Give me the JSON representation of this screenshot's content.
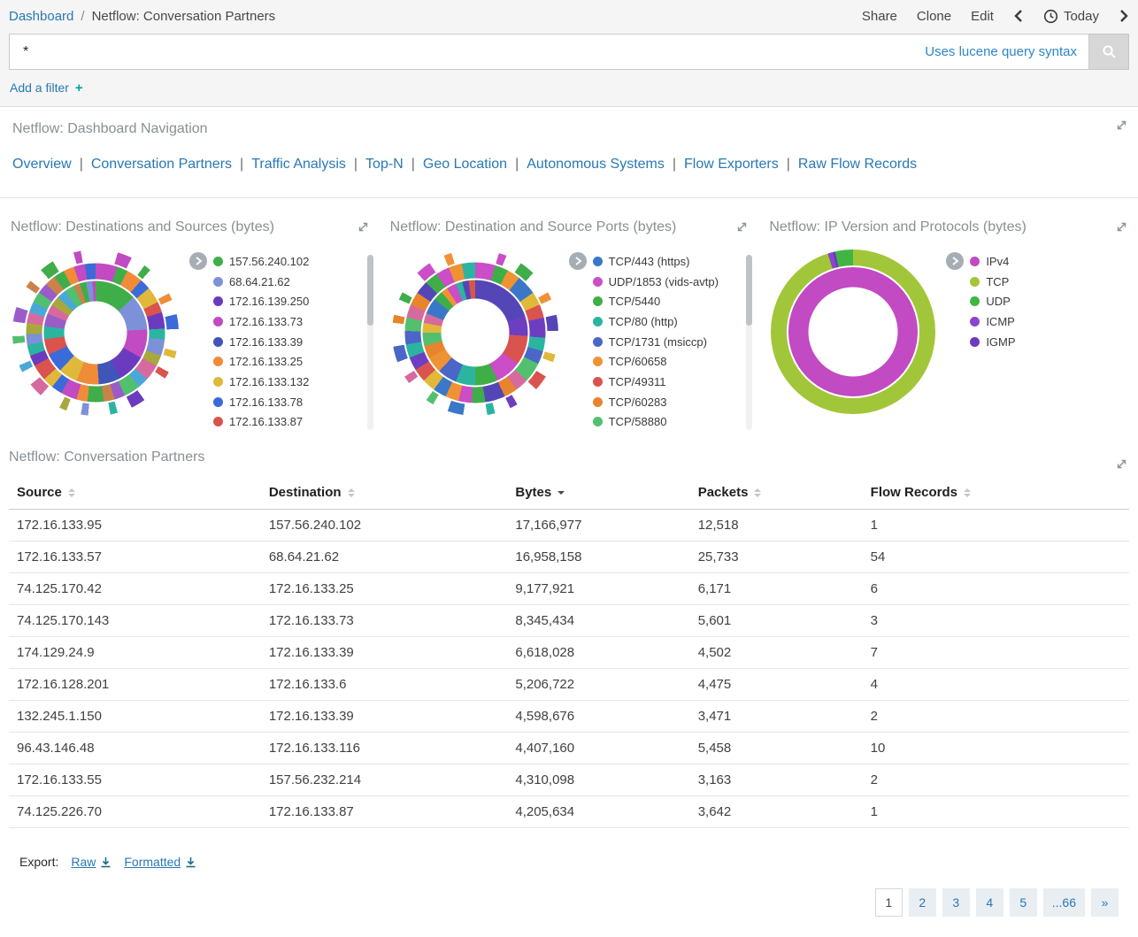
{
  "colors": {
    "accent": "#2878b5",
    "add_filter_plus": "#00a69b"
  },
  "breadcrumb": {
    "dashboard_label": "Dashboard",
    "separator": "/",
    "title": "Netflow: Conversation Partners"
  },
  "topbar": {
    "actions": [
      "Share",
      "Clone",
      "Edit"
    ],
    "time_label": "Today"
  },
  "search": {
    "value": "*",
    "hint": "Uses lucene query syntax"
  },
  "filter_bar": {
    "add_filter_label": "Add a filter",
    "plus": "+"
  },
  "nav_panel": {
    "title": "Netflow: Dashboard Navigation",
    "separator": "|",
    "links": [
      "Overview",
      "Conversation Partners",
      "Traffic Analysis",
      "Top-N",
      "Geo Location",
      "Autonomous Systems",
      "Flow Exporters",
      "Raw Flow Records"
    ]
  },
  "charts": [
    {
      "title": "Netflow: Destinations and Sources (bytes)",
      "legend_scroll": true,
      "legend": [
        {
          "label": "157.56.240.102",
          "color": "#3fae49"
        },
        {
          "label": "68.64.21.62",
          "color": "#7d91d8"
        },
        {
          "label": "172.16.139.250",
          "color": "#6a3bbf"
        },
        {
          "label": "172.16.133.73",
          "color": "#c24ac2"
        },
        {
          "label": "172.16.133.39",
          "color": "#4055b8"
        },
        {
          "label": "172.16.133.25",
          "color": "#f08c38"
        },
        {
          "label": "172.16.133.132",
          "color": "#e0b83a"
        },
        {
          "label": "172.16.133.78",
          "color": "#3a6bd8"
        },
        {
          "label": "172.16.133.87",
          "color": "#d9534f"
        }
      ],
      "chart_data": {
        "type": "pie",
        "subtype": "sunburst-donut",
        "size": 192,
        "hole": 0.37,
        "rings": [
          {
            "d": 1.0,
            "segments": [
              [
                "#fff",
                3
              ],
              [
                "#c24ac2",
                2
              ],
              [
                "#fff",
                2
              ],
              [
                "#3fae49",
                1
              ],
              [
                "#fff",
                4
              ],
              [
                "#f08c38",
                1
              ],
              [
                "#fff",
                2
              ],
              [
                "#3a6bd8",
                2
              ],
              [
                "#fff",
                3
              ],
              [
                "#e0b83a",
                1
              ],
              [
                "#fff",
                2
              ],
              [
                "#d9534f",
                1
              ],
              [
                "#fff",
                4
              ],
              [
                "#6a3bbf",
                2
              ],
              [
                "#fff",
                2
              ],
              [
                "#2bb5a0",
                1
              ],
              [
                "#fff",
                3
              ],
              [
                "#7d91d8",
                1
              ],
              [
                "#fff",
                2
              ],
              [
                "#a8a83c",
                1
              ],
              [
                "#fff",
                3
              ],
              [
                "#d66a9e",
                2
              ],
              [
                "#fff",
                2
              ],
              [
                "#4aa8d8",
                1
              ],
              [
                "#fff",
                3
              ],
              [
                "#52c06e",
                1
              ],
              [
                "#fff",
                2
              ],
              [
                "#9a5cc8",
                2
              ],
              [
                "#fff",
                3
              ],
              [
                "#c8824a",
                1
              ],
              [
                "#fff",
                2
              ],
              [
                "#3fae49",
                2
              ],
              [
                "#fff",
                3
              ],
              [
                "#c24ac2",
                1
              ],
              [
                "#fff",
                2
              ]
            ]
          },
          {
            "d": 0.84,
            "segments": [
              [
                "#c24ac2",
                4
              ],
              [
                "#3fae49",
                2
              ],
              [
                "#f08c38",
                3
              ],
              [
                "#3a6bd8",
                2
              ],
              [
                "#e0b83a",
                3
              ],
              [
                "#d9534f",
                2
              ],
              [
                "#6a3bbf",
                3
              ],
              [
                "#2bb5a0",
                2
              ],
              [
                "#7d91d8",
                3
              ],
              [
                "#a8a83c",
                2
              ],
              [
                "#d66a9e",
                3
              ],
              [
                "#4aa8d8",
                2
              ],
              [
                "#52c06e",
                3
              ],
              [
                "#9a5cc8",
                2
              ],
              [
                "#c8824a",
                2
              ],
              [
                "#3fae49",
                3
              ],
              [
                "#f08c38",
                2
              ],
              [
                "#c24ac2",
                3
              ],
              [
                "#3a6bd8",
                2
              ],
              [
                "#e0b83a",
                2
              ],
              [
                "#d9534f",
                3
              ],
              [
                "#6a3bbf",
                2
              ],
              [
                "#2bb5a0",
                2
              ],
              [
                "#7d91d8",
                2
              ],
              [
                "#a8a83c",
                2
              ],
              [
                "#d66a9e",
                2
              ],
              [
                "#4aa8d8",
                2
              ],
              [
                "#52c06e",
                2
              ],
              [
                "#9a5cc8",
                2
              ],
              [
                "#c8824a",
                2
              ],
              [
                "#3fae49",
                2
              ],
              [
                "#f08c38",
                2
              ],
              [
                "#c24ac2",
                2
              ],
              [
                "#3a6bd8",
                2
              ]
            ]
          },
          {
            "d": 0.63,
            "segments": [
              [
                "#3fae49",
                13
              ],
              [
                "#7d91d8",
                11
              ],
              [
                "#c24ac2",
                9
              ],
              [
                "#6a3bbf",
                9
              ],
              [
                "#4055b8",
                7
              ],
              [
                "#f08c38",
                7
              ],
              [
                "#e0b83a",
                6
              ],
              [
                "#3a6bd8",
                6
              ],
              [
                "#d9534f",
                5
              ],
              [
                "#2bb5a0",
                4
              ],
              [
                "#9a5cc8",
                4
              ],
              [
                "#d66a9e",
                3
              ],
              [
                "#a8a83c",
                3
              ],
              [
                "#4aa8d8",
                3
              ],
              [
                "#52c06e",
                3
              ],
              [
                "#c8824a",
                2
              ],
              [
                "#3fae49",
                2
              ],
              [
                "#7d91d8",
                2
              ],
              [
                "#c24ac2",
                1
              ]
            ]
          }
        ]
      }
    },
    {
      "title": "Netflow: Destination and Source Ports (bytes)",
      "legend_scroll": true,
      "legend": [
        {
          "label": "TCP/443 (https)",
          "color": "#3a77c8"
        },
        {
          "label": "UDP/1853 (vids-avtp)",
          "color": "#cb4dc8"
        },
        {
          "label": "TCP/5440",
          "color": "#3fae49"
        },
        {
          "label": "TCP/80 (http)",
          "color": "#2bb5a0"
        },
        {
          "label": "TCP/1731 (msiccp)",
          "color": "#4a66c8"
        },
        {
          "label": "TCP/60658",
          "color": "#ef9234"
        },
        {
          "label": "TCP/49311",
          "color": "#d9534f"
        },
        {
          "label": "TCP/60283",
          "color": "#e8842c"
        },
        {
          "label": "TCP/58880",
          "color": "#52c06e"
        }
      ],
      "chart_data": {
        "type": "pie",
        "subtype": "sunburst-donut",
        "size": 192,
        "hole": 0.4,
        "rings": [
          {
            "d": 1.0,
            "segments": [
              [
                "#fff",
                3
              ],
              [
                "#cb4dc8",
                1
              ],
              [
                "#fff",
                2
              ],
              [
                "#3fae49",
                2
              ],
              [
                "#fff",
                3
              ],
              [
                "#ef9234",
                1
              ],
              [
                "#fff",
                2
              ],
              [
                "#5546b8",
                2
              ],
              [
                "#fff",
                3
              ],
              [
                "#e0b83a",
                1
              ],
              [
                "#fff",
                2
              ],
              [
                "#d9534f",
                2
              ],
              [
                "#fff",
                3
              ],
              [
                "#6d3fc0",
                1
              ],
              [
                "#fff",
                2
              ],
              [
                "#2bb5a0",
                1
              ],
              [
                "#fff",
                3
              ],
              [
                "#3a77c8",
                2
              ],
              [
                "#fff",
                2
              ],
              [
                "#52c06e",
                1
              ],
              [
                "#fff",
                3
              ],
              [
                "#d66a9e",
                1
              ],
              [
                "#fff",
                2
              ],
              [
                "#4a66c8",
                2
              ],
              [
                "#fff",
                3
              ],
              [
                "#e8842c",
                1
              ],
              [
                "#fff",
                2
              ],
              [
                "#3fae49",
                1
              ],
              [
                "#fff",
                3
              ],
              [
                "#cb4dc8",
                2
              ],
              [
                "#fff",
                2
              ],
              [
                "#ef9234",
                1
              ],
              [
                "#fff",
                3
              ]
            ]
          },
          {
            "d": 0.85,
            "segments": [
              [
                "#cb4dc8",
                3
              ],
              [
                "#3fae49",
                2
              ],
              [
                "#ef9234",
                2
              ],
              [
                "#3a77c8",
                3
              ],
              [
                "#e0b83a",
                2
              ],
              [
                "#d9534f",
                2
              ],
              [
                "#6d3fc0",
                3
              ],
              [
                "#2bb5a0",
                2
              ],
              [
                "#4a66c8",
                2
              ],
              [
                "#52c06e",
                3
              ],
              [
                "#d66a9e",
                2
              ],
              [
                "#e8842c",
                2
              ],
              [
                "#5546b8",
                3
              ],
              [
                "#3fae49",
                2
              ],
              [
                "#cb4dc8",
                2
              ],
              [
                "#ef9234",
                2
              ],
              [
                "#3a77c8",
                2
              ],
              [
                "#e0b83a",
                2
              ],
              [
                "#d9534f",
                2
              ],
              [
                "#6d3fc0",
                2
              ],
              [
                "#2bb5a0",
                2
              ],
              [
                "#4a66c8",
                2
              ],
              [
                "#52c06e",
                2
              ],
              [
                "#d66a9e",
                2
              ],
              [
                "#e8842c",
                2
              ],
              [
                "#5546b8",
                2
              ],
              [
                "#3fae49",
                2
              ],
              [
                "#cb4dc8",
                2
              ],
              [
                "#ef9234",
                2
              ],
              [
                "#2bb5a0",
                2
              ]
            ]
          },
          {
            "d": 0.64,
            "segments": [
              [
                "#5546b8",
                20
              ],
              [
                "#6d3fc0",
                6
              ],
              [
                "#d9534f",
                9
              ],
              [
                "#cb4dc8",
                8
              ],
              [
                "#3fae49",
                7
              ],
              [
                "#2bb5a0",
                6
              ],
              [
                "#4a66c8",
                6
              ],
              [
                "#ef9234",
                5
              ],
              [
                "#e8842c",
                4
              ],
              [
                "#52c06e",
                4
              ],
              [
                "#e0b83a",
                3
              ],
              [
                "#d66a9e",
                3
              ],
              [
                "#3a77c8",
                5
              ],
              [
                "#3fae49",
                3
              ],
              [
                "#ef9234",
                2
              ],
              [
                "#cb4dc8",
                3
              ],
              [
                "#2bb5a0",
                2
              ],
              [
                "#5546b8",
                2
              ],
              [
                "#d9534f",
                2
              ]
            ]
          }
        ]
      }
    },
    {
      "title": "Netflow: IP Version and Protocols (bytes)",
      "legend_scroll": false,
      "legend": [
        {
          "label": "IPv4",
          "color": "#c24ac2"
        },
        {
          "label": "TCP",
          "color": "#a2c63a"
        },
        {
          "label": "UDP",
          "color": "#41b541"
        },
        {
          "label": "ICMP",
          "color": "#8a46c8"
        },
        {
          "label": "IGMP",
          "color": "#6a3bbf"
        }
      ],
      "chart_data": {
        "type": "pie",
        "subtype": "sunburst-donut",
        "size": 190,
        "hole": 0.53,
        "rings": [
          {
            "d": 1.0,
            "segments": [
              [
                "#a2c63a",
                95
              ],
              [
                "#8a46c8",
                1
              ],
              [
                "#6a3bbf",
                0.5
              ],
              [
                "#41b541",
                3.5
              ]
            ]
          },
          {
            "d": 0.79,
            "segments": [
              [
                "#c24ac2",
                100
              ]
            ]
          }
        ]
      }
    }
  ],
  "table_panel": {
    "title": "Netflow: Conversation Partners",
    "columns": [
      {
        "label": "Source",
        "sort": "sortable"
      },
      {
        "label": "Destination",
        "sort": "sortable"
      },
      {
        "label": "Bytes",
        "sort": "desc"
      },
      {
        "label": "Packets",
        "sort": "sortable"
      },
      {
        "label": "Flow Records",
        "sort": "sortable"
      }
    ],
    "rows": [
      [
        "172.16.133.95",
        "157.56.240.102",
        "17,166,977",
        "12,518",
        "1"
      ],
      [
        "172.16.133.57",
        "68.64.21.62",
        "16,958,158",
        "25,733",
        "54"
      ],
      [
        "74.125.170.42",
        "172.16.133.25",
        "9,177,921",
        "6,171",
        "6"
      ],
      [
        "74.125.170.143",
        "172.16.133.73",
        "8,345,434",
        "5,601",
        "3"
      ],
      [
        "174.129.24.9",
        "172.16.133.39",
        "6,618,028",
        "4,502",
        "7"
      ],
      [
        "172.16.128.201",
        "172.16.133.6",
        "5,206,722",
        "4,475",
        "4"
      ],
      [
        "132.245.1.150",
        "172.16.133.39",
        "4,598,676",
        "3,471",
        "2"
      ],
      [
        "96.43.146.48",
        "172.16.133.116",
        "4,407,160",
        "5,458",
        "10"
      ],
      [
        "172.16.133.55",
        "157.56.232.214",
        "4,310,098",
        "3,163",
        "2"
      ],
      [
        "74.125.226.70",
        "172.16.133.87",
        "4,205,634",
        "3,642",
        "1"
      ]
    ]
  },
  "export_bar": {
    "label": "Export:",
    "links": [
      "Raw",
      "Formatted"
    ]
  },
  "pagination": {
    "pages": [
      "1",
      "2",
      "3",
      "4",
      "5",
      "...66",
      "»"
    ],
    "active": "1"
  }
}
